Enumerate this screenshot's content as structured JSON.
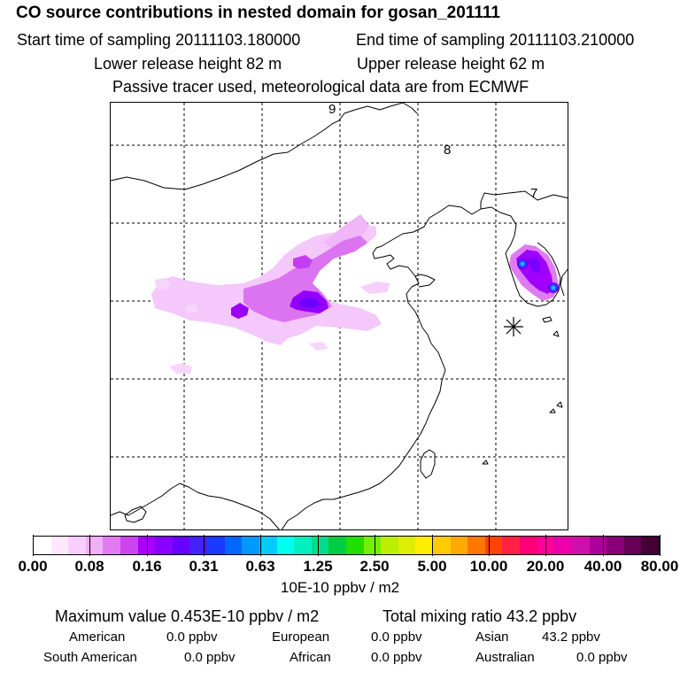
{
  "header": {
    "title": "CO  source contributions in nested domain for gosan_201111",
    "start_time": "Start time of sampling 20111103.180000",
    "end_time": "End time of sampling 20111103.210000",
    "lower_height": "Lower release height   82 m",
    "upper_height": "Upper release height   62 m",
    "tracer_note": "Passive tracer used, meteorological data are from ECMWF"
  },
  "map": {
    "day_markers": [
      "9",
      "8",
      "7"
    ],
    "receptor_marker": "release-site-star-icon"
  },
  "colorbar": {
    "colors": [
      "#ffffff",
      "#fde8fe",
      "#f8cffc",
      "#f0b0f8",
      "#e27af2",
      "#cc44ee",
      "#aa00ff",
      "#8800ff",
      "#6600ff",
      "#4422ff",
      "#1a3bff",
      "#0066ff",
      "#0099ff",
      "#00ccff",
      "#00ffee",
      "#00f0c0",
      "#00dd88",
      "#00cc44",
      "#22dd00",
      "#77ee00",
      "#bbee00",
      "#ddee00",
      "#ffee00",
      "#ffcc00",
      "#ffaa00",
      "#ff7700",
      "#ff4400",
      "#ff2244",
      "#ff0077",
      "#ff0099",
      "#ee00aa",
      "#cc11aa",
      "#aa0099",
      "#880077",
      "#660055",
      "#440033"
    ],
    "tick_labels": [
      "0.00",
      "0.08",
      "0.16",
      "0.31",
      "0.63",
      "1.25",
      "2.50",
      "5.00",
      "10.00",
      "20.00",
      "40.00",
      "80.00"
    ],
    "unit": "10E-10 ppbv / m2"
  },
  "stats": {
    "max_value": "Maximum value  0.453E-10 ppbv / m2",
    "total_mixing": "Total mixing ratio       43.2 ppbv",
    "regions": [
      {
        "name": "American",
        "value": "0.0 ppbv"
      },
      {
        "name": "European",
        "value": "0.0 ppbv"
      },
      {
        "name": "Asian",
        "value": "43.2 ppbv"
      },
      {
        "name": "South American",
        "value": "0.0 ppbv"
      },
      {
        "name": "African",
        "value": "0.0 ppbv"
      },
      {
        "name": "Australian",
        "value": "0.0 ppbv"
      }
    ]
  }
}
